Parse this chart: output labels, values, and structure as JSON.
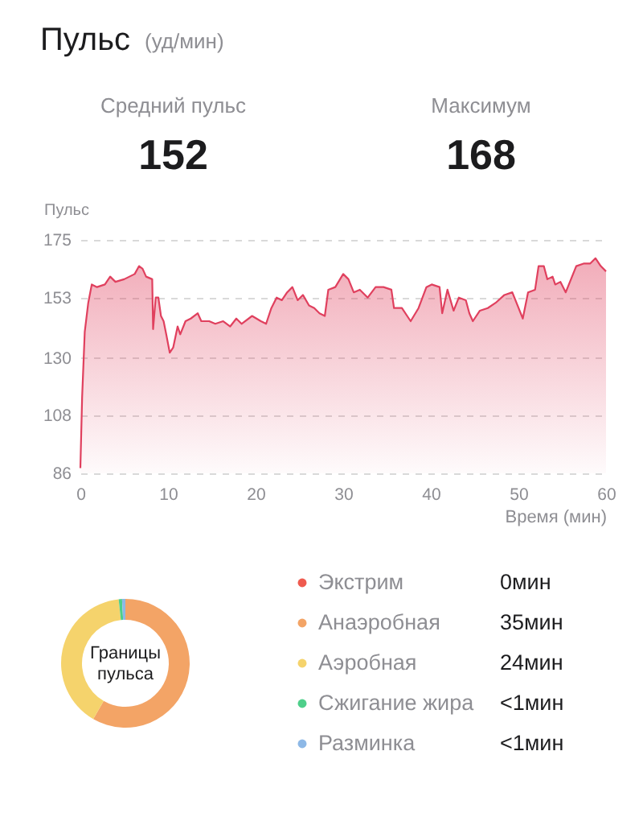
{
  "chart_data": [
    {
      "type": "area",
      "title": "Пульс",
      "subtitle": "(уд/мин)",
      "annotations": [
        "Средний пульс",
        "152",
        "Максимум",
        "168"
      ],
      "ylabel": "Пульс",
      "xlabel": "Время (мин)",
      "color": "#e0405e",
      "x": [
        0,
        0.2,
        0.5,
        0.9,
        1.3,
        1.9,
        2.8,
        3.4,
        4.0,
        5.0,
        5.6,
        6.2,
        6.7,
        7.1,
        7.5,
        8.2,
        8.3,
        8.6,
        8.9,
        9.2,
        9.5,
        9.8,
        10.2,
        10.6,
        11.1,
        11.4,
        12.0,
        12.6,
        13.4,
        13.8,
        14.7,
        15.4,
        16.3,
        17.1,
        17.8,
        18.4,
        19.6,
        20.6,
        21.2,
        21.8,
        22.4,
        23.0,
        23.6,
        24.2,
        24.8,
        25.4,
        26.1,
        26.7,
        27.3,
        27.9,
        28.3,
        29.1,
        30.0,
        30.6,
        31.2,
        31.9,
        32.8,
        33.7,
        34.6,
        35.5,
        35.8,
        36.7,
        37.7,
        38.6,
        39.5,
        40.1,
        41.0,
        41.3,
        41.9,
        42.6,
        43.2,
        44.0,
        44.4,
        44.8,
        45.6,
        46.5,
        47.4,
        48.4,
        49.3,
        49.9,
        50.5,
        51.1,
        51.9,
        52.3,
        52.9,
        53.3,
        53.9,
        54.2,
        54.8,
        55.4,
        56.0,
        56.6,
        57.5,
        58.2,
        58.8,
        59.4,
        60.0
      ],
      "values": [
        88,
        115,
        140,
        151,
        158,
        157,
        158,
        161,
        159,
        160,
        161,
        162,
        165,
        164,
        161,
        160,
        141,
        153,
        153,
        146,
        144,
        139,
        132,
        134,
        142,
        139,
        144,
        145,
        147,
        144,
        144,
        143,
        144,
        142,
        145,
        143,
        146,
        144,
        143,
        149,
        153,
        152,
        155,
        157,
        152,
        154,
        150,
        149,
        147,
        146,
        156,
        157,
        162,
        160,
        155,
        156,
        153,
        157,
        157,
        156,
        149,
        149,
        144,
        149,
        157,
        158,
        157,
        147,
        156,
        148,
        153,
        152,
        147,
        144,
        148,
        149,
        151,
        154,
        155,
        150,
        145,
        155,
        156,
        165,
        165,
        160,
        161,
        158,
        159,
        155,
        160,
        165,
        166,
        166,
        168,
        165,
        163
      ],
      "xlim": [
        0,
        60
      ],
      "xticks": [
        0,
        10,
        20,
        30,
        40,
        50,
        60
      ],
      "ylim": [
        86,
        175
      ],
      "yticks": [
        86,
        108,
        130,
        153,
        175
      ],
      "grid": "y"
    },
    {
      "type": "donut",
      "title": "Границы пульса",
      "categories": [
        "Экстрим",
        "Анаэробная",
        "Аэробная",
        "Сжигание жира",
        "Разминка"
      ],
      "values": [
        0,
        35,
        24,
        0.5,
        0.5
      ],
      "value_labels": [
        "0мин",
        "35мин",
        "24мин",
        "<1мин",
        "<1мин"
      ],
      "colors": [
        "#ef5b4f",
        "#f3a466",
        "#f5d36c",
        "#4ecf8a",
        "#8db8e6"
      ],
      "legend": "right"
    }
  ]
}
